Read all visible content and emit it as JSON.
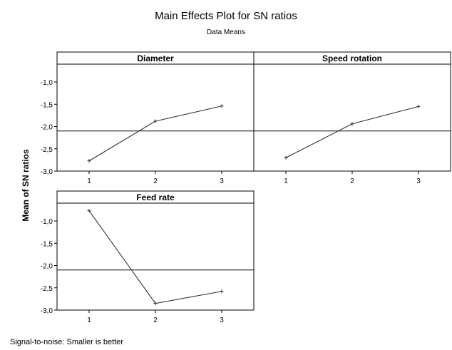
{
  "chart_data": {
    "type": "line",
    "title": "Main Effects Plot for SN ratios",
    "subtitle": "Data Means",
    "ylabel": "Mean of SN ratios",
    "footnote": "Signal-to-noise: Smaller is better",
    "x": [
      "1",
      "2",
      "3"
    ],
    "ylim": [
      -3.0,
      -0.6
    ],
    "yticks": [
      "-1,0",
      "-1,5",
      "-2,0",
      "-2,5",
      "-3,0"
    ],
    "ytick_values": [
      -1.0,
      -1.5,
      -2.0,
      -2.5,
      -3.0
    ],
    "reference_line": -2.1,
    "panels": [
      {
        "name": "Diameter",
        "values": [
          -2.77,
          -1.88,
          -1.54
        ]
      },
      {
        "name": "Speed rotation",
        "values": [
          -2.7,
          -1.94,
          -1.55
        ]
      },
      {
        "name": "Feed rate",
        "values": [
          -0.77,
          -2.85,
          -2.58
        ]
      }
    ]
  },
  "colors": {
    "line": "#333333",
    "axis": "#000000",
    "background": "#ffffff"
  }
}
